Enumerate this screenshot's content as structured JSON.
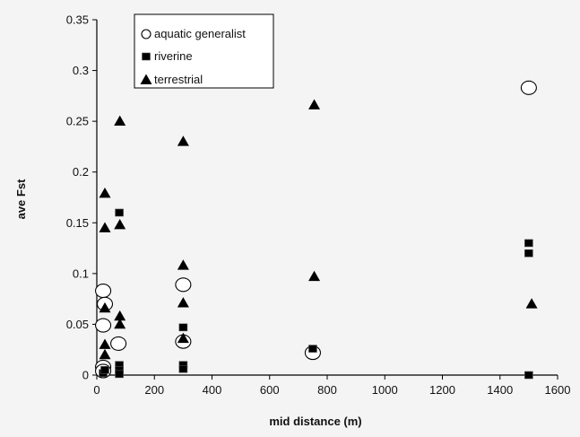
{
  "chart_data": {
    "type": "scatter",
    "xlabel": "mid distance (m)",
    "ylabel": "ave Fst",
    "xlim": [
      0,
      1600
    ],
    "ylim": [
      0,
      0.35
    ],
    "xticks": [
      0,
      200,
      400,
      600,
      800,
      1000,
      1200,
      1400,
      1600
    ],
    "yticks": [
      0,
      0.05,
      0.1,
      0.15,
      0.2,
      0.25,
      0.3,
      0.35
    ],
    "xtick_labels": [
      "0",
      "200",
      "400",
      "600",
      "800",
      "1000",
      "1200",
      "1400",
      "1600"
    ],
    "ytick_labels": [
      "0",
      "0.05",
      "0.1",
      "0.15",
      "0.2",
      "0.25",
      "0.3",
      "0.35"
    ],
    "grid": false,
    "legend_position": "top-left",
    "series": [
      {
        "name": "aquatic generalist",
        "marker": "circle-open",
        "points": [
          [
            22,
            0.083
          ],
          [
            22,
            0.049
          ],
          [
            28,
            0.07
          ],
          [
            22,
            0.008
          ],
          [
            22,
            0.004
          ],
          [
            75,
            0.031
          ],
          [
            300,
            0.089
          ],
          [
            300,
            0.033
          ],
          [
            750,
            0.022
          ],
          [
            1500,
            0.283
          ]
        ]
      },
      {
        "name": "riverine",
        "marker": "square-filled",
        "points": [
          [
            22,
            0.002
          ],
          [
            28,
            0.005
          ],
          [
            78,
            0.16
          ],
          [
            78,
            0.01
          ],
          [
            78,
            0.005
          ],
          [
            78,
            0.001
          ],
          [
            300,
            0.047
          ],
          [
            300,
            0.01
          ],
          [
            300,
            0.006
          ],
          [
            750,
            0.026
          ],
          [
            1500,
            0.13
          ],
          [
            1500,
            0.12
          ],
          [
            1500,
            0.0
          ]
        ]
      },
      {
        "name": "terrestrial",
        "marker": "triangle-filled",
        "points": [
          [
            28,
            0.179
          ],
          [
            28,
            0.145
          ],
          [
            28,
            0.066
          ],
          [
            28,
            0.03
          ],
          [
            28,
            0.02
          ],
          [
            80,
            0.25
          ],
          [
            80,
            0.148
          ],
          [
            80,
            0.058
          ],
          [
            80,
            0.05
          ],
          [
            300,
            0.23
          ],
          [
            300,
            0.108
          ],
          [
            300,
            0.071
          ],
          [
            300,
            0.036
          ],
          [
            755,
            0.266
          ],
          [
            755,
            0.097
          ],
          [
            1510,
            0.07
          ]
        ]
      }
    ]
  },
  "colors": {
    "marker_fill": "#000000",
    "axis": "#000000",
    "background": "#f4f4f4"
  }
}
